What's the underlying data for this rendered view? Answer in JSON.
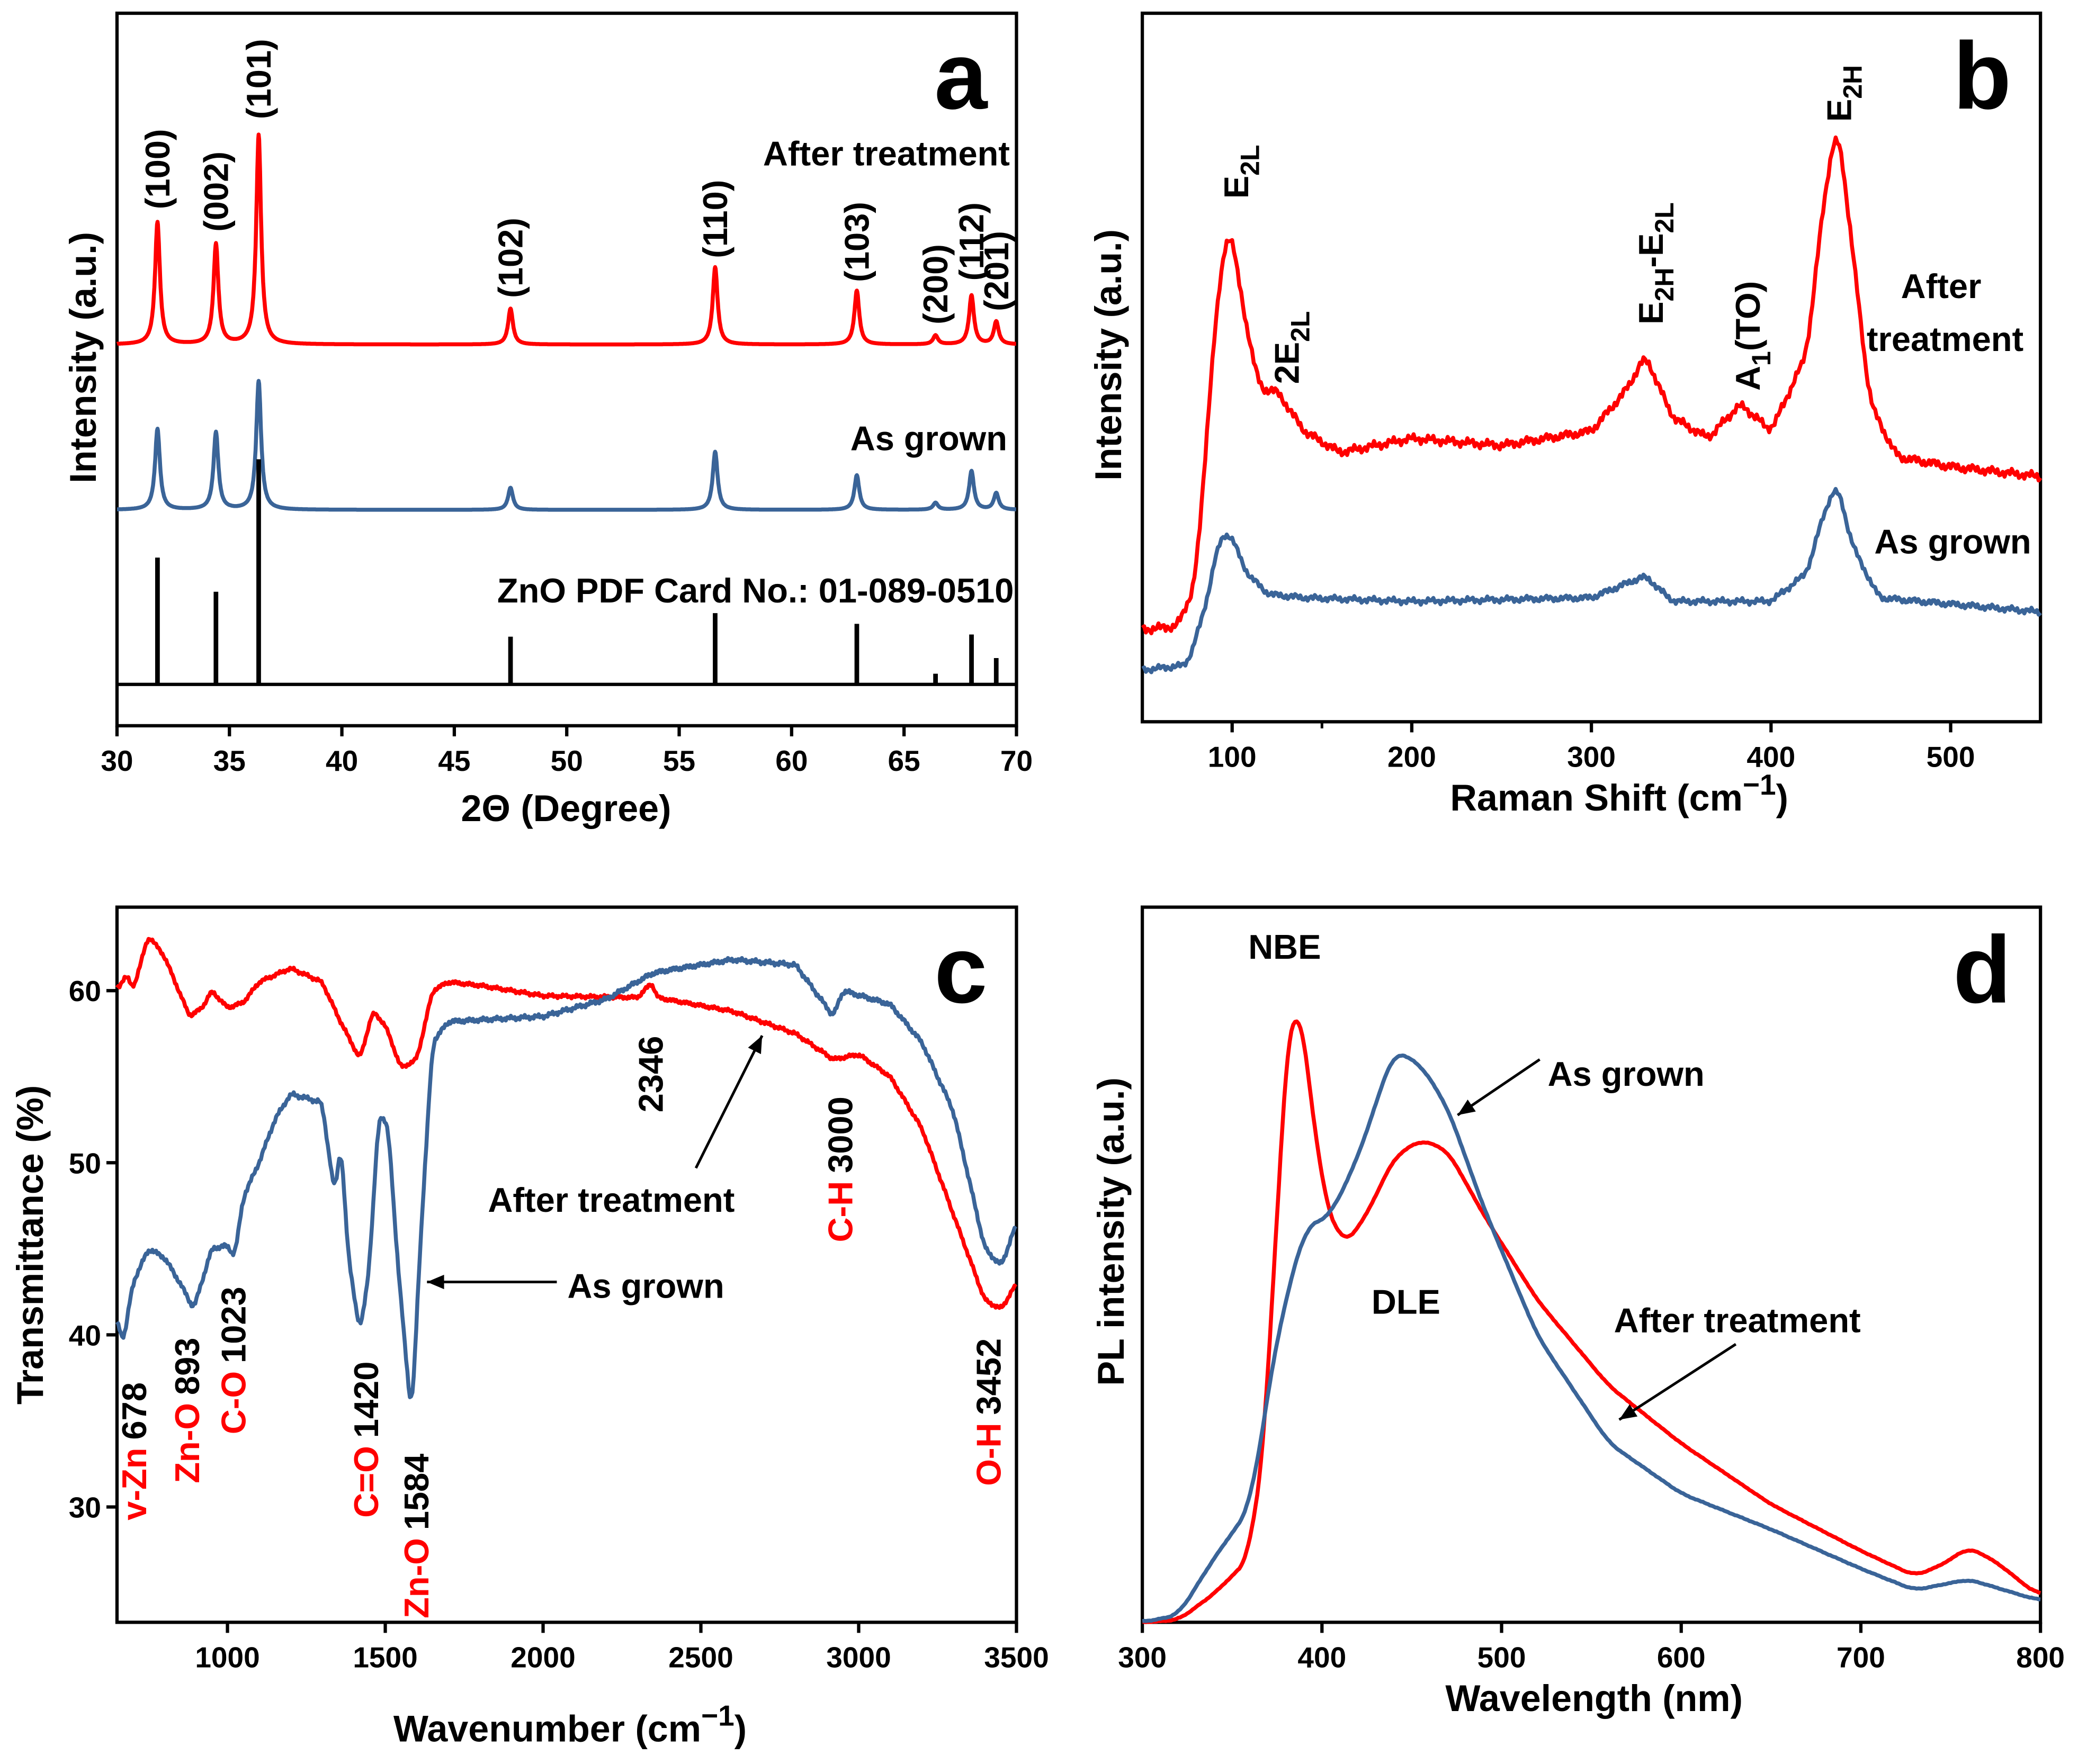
{
  "colors": {
    "after": "#ff0000",
    "asgrown": "#3a6498",
    "ref": "#000000",
    "label_red": "#ff0000"
  },
  "chart_data": [
    {
      "panel": "a",
      "type": "line",
      "xlabel": "2Θ (Degree)",
      "ylabel": "Intensity (a.u.)",
      "xlim": [
        30,
        70
      ],
      "ylim": [
        0,
        100
      ],
      "xticks": [
        "30",
        "35",
        "40",
        "45",
        "50",
        "55",
        "60",
        "65",
        "70"
      ],
      "xtick_values": [
        30,
        35,
        40,
        45,
        50,
        55,
        60,
        65,
        70
      ],
      "series": [
        {
          "name": "After treatment",
          "baseline": 53.5,
          "peaks": [
            [
              31.8,
              17.7
            ],
            [
              34.4,
              14.5
            ],
            [
              36.3,
              30.3
            ],
            [
              47.5,
              5.2
            ],
            [
              56.6,
              11.2
            ],
            [
              62.9,
              7.8
            ],
            [
              66.4,
              1.3
            ],
            [
              68.0,
              7.1
            ],
            [
              69.1,
              3.3
            ]
          ]
        },
        {
          "name": "As grown",
          "baseline": 30.3,
          "peaks": [
            [
              31.8,
              11.7
            ],
            [
              34.4,
              11.2
            ],
            [
              36.3,
              18.6
            ],
            [
              47.5,
              3.2
            ],
            [
              56.6,
              8.4
            ],
            [
              62.9,
              5.0
            ],
            [
              66.4,
              1.0
            ],
            [
              68.0,
              5.6
            ],
            [
              69.1,
              2.4
            ]
          ]
        },
        {
          "name": "ZnO PDF Card No.: 01-089-0510",
          "baseline": 5.8,
          "sticks": [
            [
              31.8,
              17.8
            ],
            [
              34.4,
              13
            ],
            [
              36.3,
              31.6
            ],
            [
              47.5,
              6.7
            ],
            [
              56.6,
              10
            ],
            [
              62.9,
              8.5
            ],
            [
              66.4,
              1.5
            ],
            [
              68.0,
              7
            ],
            [
              69.1,
              3.7
            ]
          ]
        }
      ],
      "peak_labels": [
        [
          "(100)",
          31.8
        ],
        [
          "(002)",
          34.4
        ],
        [
          "(101)",
          36.3
        ],
        [
          "(102)",
          47.5
        ],
        [
          "(110)",
          56.6
        ],
        [
          "(103)",
          62.9
        ],
        [
          "(200)",
          66.4
        ],
        [
          "(112)",
          68.0
        ],
        [
          "(201)",
          69.1
        ]
      ],
      "panel_letter": "a"
    },
    {
      "panel": "b",
      "type": "line",
      "xlabel": "Raman Shift (cm",
      "xlabel_sup": "−1",
      "xlabel_end": ")",
      "ylabel": "Intensity (a.u.)",
      "xlim": [
        50,
        550
      ],
      "ylim": [
        0,
        100
      ],
      "xticks": [
        "100",
        "200",
        "300",
        "400",
        "500"
      ],
      "xtick_values": [
        100,
        200,
        300,
        400,
        500
      ],
      "series": [
        {
          "name": "After treatment",
          "label_lines": [
            "After",
            "treatment"
          ],
          "points": [
            [
              50,
              13
            ],
            [
              70,
              13.5
            ],
            [
              80,
              20
            ],
            [
              90,
              55
            ],
            [
              98,
              71.4
            ],
            [
              105,
              60
            ],
            [
              115,
              47
            ],
            [
              125,
              46.7
            ],
            [
              140,
              41
            ],
            [
              160,
              38
            ],
            [
              200,
              40
            ],
            [
              250,
              39
            ],
            [
              300,
              41
            ],
            [
              320,
              47
            ],
            [
              330,
              51.8
            ],
            [
              345,
              43
            ],
            [
              365,
              40
            ],
            [
              383,
              44.9
            ],
            [
              400,
              41
            ],
            [
              420,
              52
            ],
            [
              430,
              75
            ],
            [
              437,
              84.7
            ],
            [
              443,
              72
            ],
            [
              455,
              45
            ],
            [
              470,
              37.4
            ],
            [
              500,
              36
            ],
            [
              550,
              34.6
            ]
          ]
        },
        {
          "name": "As grown",
          "points": [
            [
              50,
              7.3
            ],
            [
              75,
              8
            ],
            [
              85,
              16
            ],
            [
              92,
              25
            ],
            [
              98,
              27.1
            ],
            [
              108,
              21
            ],
            [
              120,
              18
            ],
            [
              140,
              17.5
            ],
            [
              200,
              17
            ],
            [
              300,
              17.5
            ],
            [
              330,
              20.6
            ],
            [
              345,
              17
            ],
            [
              400,
              17
            ],
            [
              420,
              21
            ],
            [
              430,
              30
            ],
            [
              437,
              33.6
            ],
            [
              445,
              25
            ],
            [
              460,
              17.5
            ],
            [
              550,
              15.5
            ]
          ]
        }
      ],
      "peak_labels": [
        [
          {
            "t": "E"
          },
          {
            "t": "2L",
            "sub": true
          }
        ],
        [
          {
            "t": "2E"
          },
          {
            "t": "2L",
            "sub": true
          }
        ],
        [
          {
            "t": "E"
          },
          {
            "t": "2H",
            "sub": true
          },
          {
            "t": "-E"
          },
          {
            "t": "2L",
            "sub": true
          }
        ],
        [
          {
            "t": "A"
          },
          {
            "t": "1",
            "sub": true
          },
          {
            "t": "(TO)"
          }
        ],
        [
          {
            "t": "E"
          },
          {
            "t": "2H",
            "sub": true
          }
        ]
      ],
      "panel_letter": "b"
    },
    {
      "panel": "c",
      "type": "line",
      "xlabel": "Wavenumber (cm",
      "xlabel_sup": "−1",
      "xlabel_end": ")",
      "ylabel": "Transmittance (%)",
      "xlim": [
        650,
        3500
      ],
      "ylim": [
        23.3,
        64.85
      ],
      "xticks": [
        "1000",
        "1500",
        "2000",
        "2500",
        "3000",
        "3500"
      ],
      "xtick_values": [
        1000,
        1500,
        2000,
        2500,
        3000,
        3500
      ],
      "yticks": [
        "30",
        "40",
        "50",
        "60"
      ],
      "ytick_values": [
        30,
        40,
        50,
        60
      ],
      "series": [
        {
          "name": "After treatment",
          "points": [
            [
              650,
              60
            ],
            [
              680,
              61
            ],
            [
              700,
              60
            ],
            [
              750,
              63.2
            ],
            [
              800,
              62
            ],
            [
              880,
              58.5
            ],
            [
              920,
              59
            ],
            [
              950,
              60
            ],
            [
              1000,
              59
            ],
            [
              1050,
              59.3
            ],
            [
              1100,
              60.5
            ],
            [
              1200,
              61.3
            ],
            [
              1300,
              60.5
            ],
            [
              1350,
              58.5
            ],
            [
              1420,
              56
            ],
            [
              1460,
              58.8
            ],
            [
              1500,
              58
            ],
            [
              1550,
              55.5
            ],
            [
              1600,
              56
            ],
            [
              1650,
              60
            ],
            [
              1700,
              60.5
            ],
            [
              1800,
              60.3
            ],
            [
              2000,
              59.7
            ],
            [
              2300,
              59.6
            ],
            [
              2346,
              60.5
            ],
            [
              2360,
              59.6
            ],
            [
              2600,
              58.8
            ],
            [
              2800,
              57.5
            ],
            [
              2920,
              56
            ],
            [
              3000,
              56.3
            ],
            [
              3100,
              55
            ],
            [
              3200,
              52
            ],
            [
              3300,
              47
            ],
            [
              3400,
              42
            ],
            [
              3452,
              41.5
            ],
            [
              3500,
              43
            ]
          ]
        },
        {
          "name": "As grown",
          "points": [
            [
              650,
              41
            ],
            [
              670,
              39.5
            ],
            [
              700,
              43
            ],
            [
              750,
              45
            ],
            [
              800,
              44.5
            ],
            [
              850,
              43
            ],
            [
              893,
              41.5
            ],
            [
              950,
              45
            ],
            [
              1000,
              45.2
            ],
            [
              1023,
              44.5
            ],
            [
              1050,
              48
            ],
            [
              1100,
              50
            ],
            [
              1150,
              52.5
            ],
            [
              1200,
              54
            ],
            [
              1300,
              53.5
            ],
            [
              1340,
              48
            ],
            [
              1360,
              51.5
            ],
            [
              1380,
              45
            ],
            [
              1420,
              40
            ],
            [
              1450,
              44
            ],
            [
              1480,
              53
            ],
            [
              1510,
              52
            ],
            [
              1540,
              44
            ],
            [
              1584,
              35
            ],
            [
              1610,
              45
            ],
            [
              1650,
              57
            ],
            [
              1700,
              58.2
            ],
            [
              2000,
              58.5
            ],
            [
              2200,
              59.5
            ],
            [
              2346,
              61
            ],
            [
              2400,
              61.2
            ],
            [
              2600,
              61.8
            ],
            [
              2800,
              61.5
            ],
            [
              2880,
              59.5
            ],
            [
              2920,
              58.5
            ],
            [
              2950,
              60
            ],
            [
              3100,
              59.2
            ],
            [
              3200,
              57
            ],
            [
              3300,
              53
            ],
            [
              3400,
              45
            ],
            [
              3452,
              44
            ],
            [
              3500,
              46.5
            ]
          ]
        }
      ],
      "annotations": [
        [
          "v-Zn",
          "678"
        ],
        [
          "Zn-O",
          "893"
        ],
        [
          "C-O",
          "1023"
        ],
        [
          "C=O",
          "1420"
        ],
        [
          "Zn-O",
          "1584"
        ],
        [
          "",
          "2346"
        ],
        [
          "C-H",
          "3000"
        ],
        [
          "O-H",
          "3452"
        ]
      ],
      "panel_letter": "c"
    },
    {
      "panel": "d",
      "type": "line",
      "xlabel": "Wavelength (nm)",
      "ylabel": "PL intensity (a.u.)",
      "xlim": [
        300,
        800
      ],
      "ylim": [
        0,
        100
      ],
      "xticks": [
        "300",
        "400",
        "500",
        "600",
        "700",
        "800"
      ],
      "xtick_values": [
        300,
        400,
        500,
        600,
        700,
        800
      ],
      "series": [
        {
          "name": "After treatment",
          "points": [
            [
              300,
              0
            ],
            [
              320,
              0.3
            ],
            [
              340,
              4
            ],
            [
              360,
              9
            ],
            [
              370,
              30
            ],
            [
              378,
              75
            ],
            [
              385,
              90.3
            ],
            [
              392,
              78
            ],
            [
              400,
              60
            ],
            [
              412,
              52.5
            ],
            [
              425,
              57
            ],
            [
              440,
              65
            ],
            [
              455,
              67.5
            ],
            [
              470,
              66
            ],
            [
              490,
              57
            ],
            [
              520,
              45
            ],
            [
              560,
              33
            ],
            [
              600,
              25
            ],
            [
              650,
              16.5
            ],
            [
              700,
              10
            ],
            [
              730,
              6.5
            ],
            [
              745,
              8
            ],
            [
              760,
              10.5
            ],
            [
              775,
              8.5
            ],
            [
              800,
              3.5
            ]
          ]
        },
        {
          "name": "As grown",
          "points": [
            [
              300,
              0
            ],
            [
              320,
              1
            ],
            [
              340,
              9
            ],
            [
              360,
              16
            ],
            [
              375,
              40
            ],
            [
              390,
              55
            ],
            [
              405,
              57
            ],
            [
              420,
              65
            ],
            [
              440,
              80
            ],
            [
              455,
              78
            ],
            [
              470,
              72
            ],
            [
              490,
              58
            ],
            [
              520,
              40
            ],
            [
              560,
              25
            ],
            [
              600,
              18
            ],
            [
              650,
              13
            ],
            [
              700,
              7.5
            ],
            [
              730,
              4.5
            ],
            [
              760,
              6
            ],
            [
              800,
              3
            ]
          ]
        }
      ],
      "annotations": [
        "NBE",
        "DLE"
      ],
      "panel_letter": "d"
    }
  ]
}
